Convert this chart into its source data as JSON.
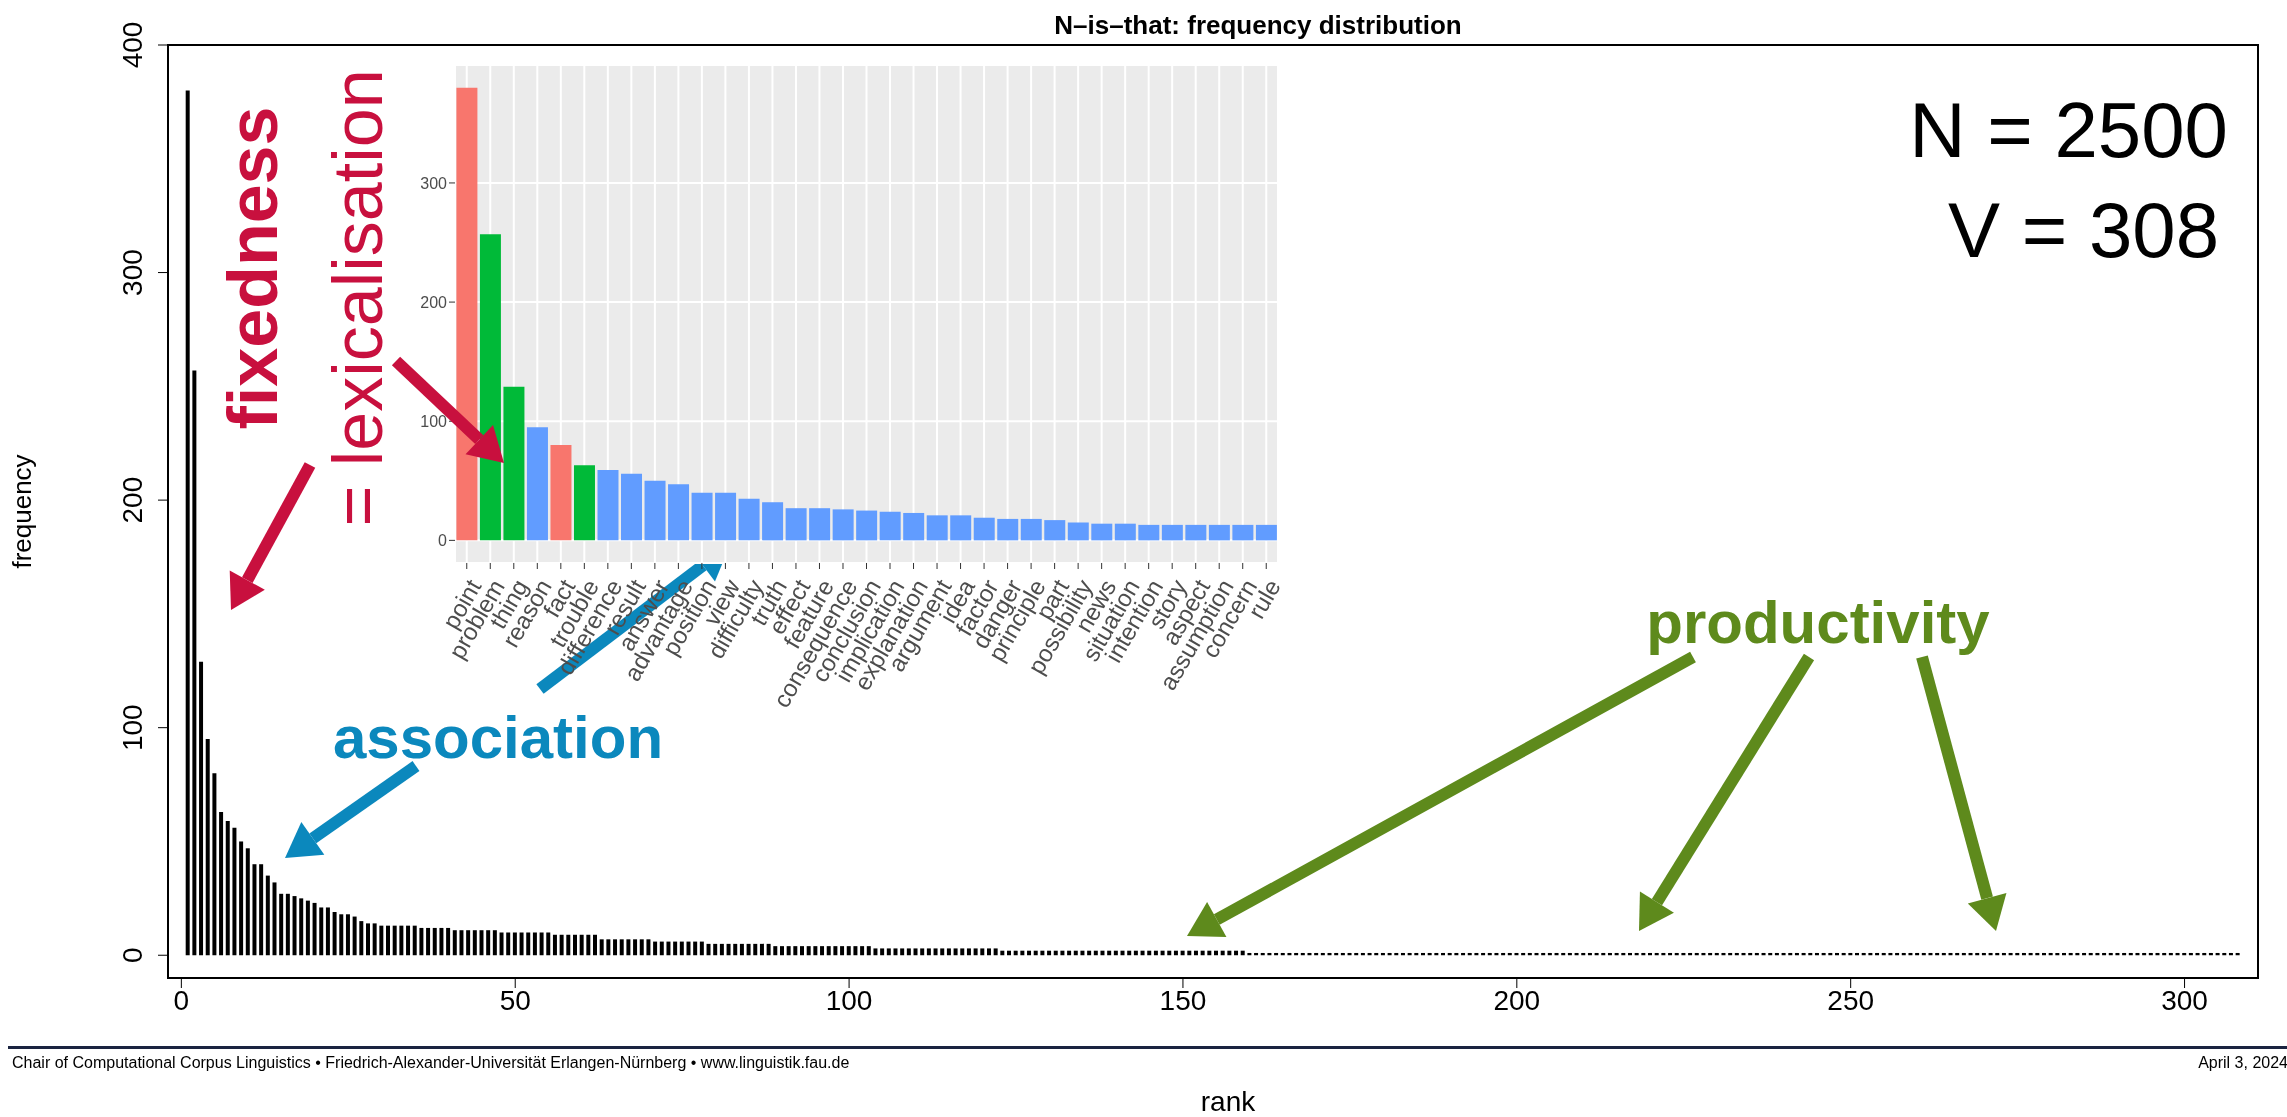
{
  "chart_data": [
    {
      "type": "bar",
      "title": "N–is–that: frequency distribution",
      "xlabel": "rank",
      "ylabel": "frequency",
      "color": "#000000",
      "x": [
        1,
        2,
        3,
        4,
        5,
        6,
        7,
        8,
        9,
        10,
        11,
        12,
        13,
        14,
        15,
        16,
        17,
        18,
        19,
        20,
        21,
        22,
        23,
        24,
        25,
        26,
        27,
        28,
        29,
        30,
        31,
        32,
        33,
        34,
        35,
        36,
        37,
        38,
        39,
        40,
        41,
        42,
        43,
        44,
        45,
        46,
        47,
        48,
        49,
        50,
        51,
        52,
        53,
        54,
        55,
        56,
        57,
        58,
        59,
        60,
        61,
        62,
        63,
        64,
        65,
        66,
        67,
        68,
        69,
        70,
        71,
        72,
        73,
        74,
        75,
        76,
        77,
        78,
        79,
        80,
        81,
        82,
        83,
        84,
        85,
        86,
        87,
        88,
        89,
        90,
        91,
        92,
        93,
        94,
        95,
        96,
        97,
        98,
        99,
        100,
        101,
        102,
        103,
        104,
        105,
        106,
        107,
        108,
        109,
        110,
        111,
        112,
        113,
        114,
        115,
        116,
        117,
        118,
        119,
        120,
        121,
        122,
        123,
        124,
        125,
        126,
        127,
        128,
        129,
        130,
        131,
        132,
        133,
        134,
        135,
        136,
        137,
        138,
        139,
        140,
        141,
        142,
        143,
        144,
        145,
        146,
        147,
        148,
        149,
        150,
        151,
        152,
        153,
        154,
        155,
        156,
        157,
        158,
        159,
        160,
        161,
        162,
        163,
        164,
        165,
        166,
        167,
        168,
        169,
        170,
        171,
        172,
        173,
        174,
        175,
        176,
        177,
        178,
        179,
        180,
        181,
        182,
        183,
        184,
        185,
        186,
        187,
        188,
        189,
        190,
        191,
        192,
        193,
        194,
        195,
        196,
        197,
        198,
        199,
        200,
        201,
        202,
        203,
        204,
        205,
        206,
        207,
        208,
        209,
        210,
        211,
        212,
        213,
        214,
        215,
        216,
        217,
        218,
        219,
        220,
        221,
        222,
        223,
        224,
        225,
        226,
        227,
        228,
        229,
        230,
        231,
        232,
        233,
        234,
        235,
        236,
        237,
        238,
        239,
        240,
        241,
        242,
        243,
        244,
        245,
        246,
        247,
        248,
        249,
        250,
        251,
        252,
        253,
        254,
        255,
        256,
        257,
        258,
        259,
        260,
        261,
        262,
        263,
        264,
        265,
        266,
        267,
        268,
        269,
        270,
        271,
        272,
        273,
        274,
        275,
        276,
        277,
        278,
        279,
        280,
        281,
        282,
        283,
        284,
        285,
        286,
        287,
        288,
        289,
        290,
        291,
        292,
        293,
        294,
        295,
        296,
        297,
        298,
        299,
        300,
        301,
        302,
        303,
        304,
        305,
        306,
        307,
        308
      ],
      "values": [
        380,
        257,
        129,
        95,
        80,
        63,
        59,
        56,
        50,
        47,
        40,
        40,
        35,
        32,
        27,
        27,
        26,
        25,
        24,
        23,
        21,
        21,
        19,
        18,
        18,
        17,
        15,
        14,
        14,
        13,
        13,
        13,
        13,
        13,
        13,
        12,
        12,
        12,
        12,
        12,
        11,
        11,
        11,
        11,
        11,
        11,
        11,
        10,
        10,
        10,
        10,
        10,
        10,
        10,
        10,
        9,
        9,
        9,
        9,
        9,
        9,
        9,
        7,
        7,
        7,
        7,
        7,
        7,
        7,
        7,
        6,
        6,
        6,
        6,
        6,
        6,
        6,
        6,
        5,
        5,
        5,
        5,
        5,
        5,
        5,
        5,
        5,
        5,
        4,
        4,
        4,
        4,
        4,
        4,
        4,
        4,
        4,
        4,
        4,
        4,
        4,
        4,
        4,
        3,
        3,
        3,
        3,
        3,
        3,
        3,
        3,
        3,
        3,
        3,
        3,
        3,
        3,
        3,
        3,
        3,
        3,
        3,
        2,
        2,
        2,
        2,
        2,
        2,
        2,
        2,
        2,
        2,
        2,
        2,
        2,
        2,
        2,
        2,
        2,
        2,
        2,
        2,
        2,
        2,
        2,
        2,
        2,
        2,
        2,
        2,
        2,
        2,
        2,
        2,
        2,
        2,
        2,
        2,
        2,
        1,
        1,
        1,
        1,
        1,
        1,
        1,
        1,
        1,
        1,
        1,
        1,
        1,
        1,
        1,
        1,
        1,
        1,
        1,
        1,
        1,
        1,
        1,
        1,
        1,
        1,
        1,
        1,
        1,
        1,
        1,
        1,
        1,
        1,
        1,
        1,
        1,
        1,
        1,
        1,
        1,
        1,
        1,
        1,
        1,
        1,
        1,
        1,
        1,
        1,
        1,
        1,
        1,
        1,
        1,
        1,
        1,
        1,
        1,
        1,
        1,
        1,
        1,
        1,
        1,
        1,
        1,
        1,
        1,
        1,
        1,
        1,
        1,
        1,
        1,
        1,
        1,
        1,
        1,
        1,
        1,
        1,
        1,
        1,
        1,
        1,
        1,
        1,
        1,
        1,
        1,
        1,
        1,
        1,
        1,
        1,
        1,
        1,
        1,
        1,
        1,
        1,
        1,
        1,
        1,
        1,
        1,
        1,
        1,
        1,
        1,
        1,
        1,
        1,
        1,
        1,
        1,
        1,
        1,
        1,
        1,
        1,
        1,
        1,
        1,
        1,
        1,
        1,
        1,
        1,
        1,
        1,
        1,
        1,
        1,
        1,
        1,
        1,
        1,
        1,
        1,
        1,
        1,
        1,
        1,
        1,
        1,
        1,
        1
      ],
      "xlim": [
        -2,
        311
      ],
      "xticks": [
        0,
        50,
        100,
        150,
        200,
        250,
        300
      ],
      "ylim": [
        -10,
        400
      ],
      "yticks": [
        0,
        100,
        200,
        300,
        400
      ],
      "annotations": [
        "fixedness",
        "= lexicalisation",
        "association",
        "productivity",
        "N = 2500",
        "V = 308",
        "Chair of Computational Corpus Linguistics • Friedrich-Alexander-Universität Erlangen-Nürnberg • www.linguistik.fau.de",
        "April 3, 2024"
      ]
    },
    {
      "type": "bar",
      "categories": [
        "point",
        "problem",
        "thing",
        "reason",
        "fact",
        "trouble",
        "difference",
        "result",
        "answer",
        "advantage",
        "position",
        "view",
        "difficulty",
        "truth",
        "effect",
        "feature",
        "consequence",
        "conclusion",
        "implication",
        "explanation",
        "argument",
        "idea",
        "factor",
        "danger",
        "principle",
        "part",
        "possibility",
        "news",
        "situation",
        "intention",
        "story",
        "aspect",
        "assumption",
        "concern",
        "rule"
      ],
      "values": [
        380,
        257,
        129,
        95,
        80,
        63,
        59,
        56,
        50,
        47,
        40,
        40,
        35,
        32,
        27,
        27,
        26,
        25,
        24,
        23,
        21,
        21,
        19,
        18,
        18,
        17,
        15,
        14,
        14,
        13,
        13,
        13,
        13,
        13,
        13
      ],
      "colors": [
        "#f8766d",
        "#00ba38",
        "#00ba38",
        "#619cff",
        "#f8766d",
        "#00ba38",
        "#619cff",
        "#619cff",
        "#619cff",
        "#619cff",
        "#619cff",
        "#619cff",
        "#619cff",
        "#619cff",
        "#619cff",
        "#619cff",
        "#619cff",
        "#619cff",
        "#619cff",
        "#619cff",
        "#619cff",
        "#619cff",
        "#619cff",
        "#619cff",
        "#619cff",
        "#619cff",
        "#619cff",
        "#619cff",
        "#619cff",
        "#619cff",
        "#619cff",
        "#619cff",
        "#619cff",
        "#619cff",
        "#619cff"
      ],
      "ylim": [
        -19,
        399
      ],
      "yticks": [
        0,
        100,
        200,
        300
      ],
      "grid": true
    }
  ]
}
